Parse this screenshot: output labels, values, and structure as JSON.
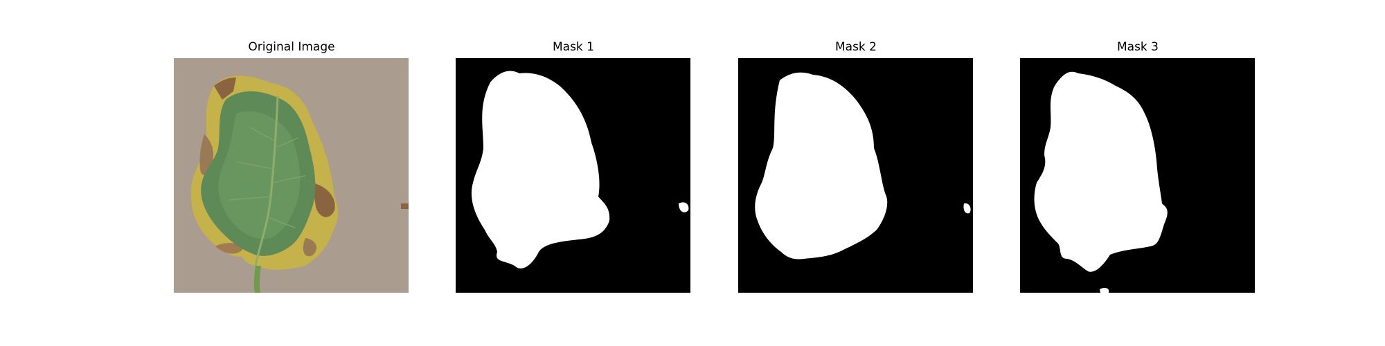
{
  "panels": [
    {
      "title": "Original Image",
      "kind": "photo",
      "subject": "diseased-tomato-leaf"
    },
    {
      "title": "Mask 1",
      "kind": "mask"
    },
    {
      "title": "Mask 2",
      "kind": "mask"
    },
    {
      "title": "Mask 3",
      "kind": "mask"
    }
  ],
  "colors": {
    "background": "#ffffff",
    "photo_background": "#a8998d",
    "leaf_green": "#5e8a57",
    "leaf_yellow": "#c5b24a",
    "leaf_brown": "#8a6440",
    "mask_background": "#000000",
    "mask_foreground": "#ffffff"
  }
}
